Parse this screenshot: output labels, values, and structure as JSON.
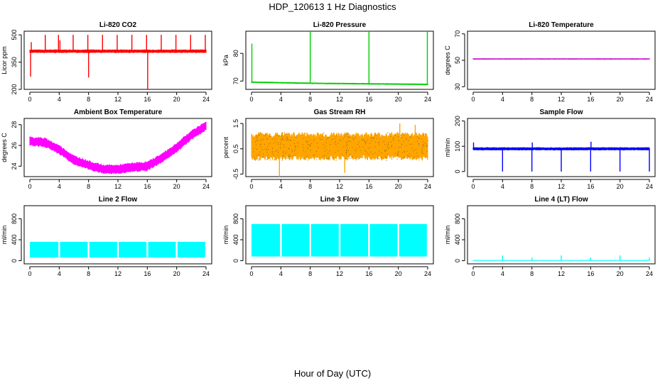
{
  "figure": {
    "title": "HDP_120613  1 Hz Diagnostics",
    "xlabel": "Hour of Day (UTC)"
  },
  "chart_data": [
    {
      "type": "line",
      "title": "Li-820 CO2",
      "ylabel": "Licor ppm",
      "color": "#ff0000",
      "xlim": [
        0,
        24
      ],
      "ylim": [
        200,
        520
      ],
      "xticks": [
        0,
        4,
        8,
        12,
        16,
        20,
        24
      ],
      "yticks": [
        200,
        350,
        500
      ],
      "grid": false,
      "baseline": [
        {
          "x": 0,
          "y": 410
        },
        {
          "x": 24,
          "y": 410
        }
      ],
      "band": 8,
      "spikes": [
        {
          "x": 0.1,
          "y": 270
        },
        {
          "x": 0.2,
          "y": 460
        },
        {
          "x": 2.1,
          "y": 500
        },
        {
          "x": 3.9,
          "y": 500
        },
        {
          "x": 4.1,
          "y": 470
        },
        {
          "x": 5.9,
          "y": 500
        },
        {
          "x": 7.9,
          "y": 500
        },
        {
          "x": 8.0,
          "y": 265
        },
        {
          "x": 9.9,
          "y": 500
        },
        {
          "x": 11.9,
          "y": 500
        },
        {
          "x": 13.9,
          "y": 500
        },
        {
          "x": 15.9,
          "y": 500
        },
        {
          "x": 16.05,
          "y": 200
        },
        {
          "x": 17.9,
          "y": 500
        },
        {
          "x": 19.9,
          "y": 500
        },
        {
          "x": 21.9,
          "y": 500
        },
        {
          "x": 23.9,
          "y": 500
        }
      ]
    },
    {
      "type": "line",
      "title": "Li-820 Pressure",
      "ylabel": "kPa",
      "color": "#00cc00",
      "xlim": [
        0,
        24
      ],
      "ylim": [
        67,
        88
      ],
      "xticks": [
        0,
        4,
        8,
        12,
        16,
        20,
        24
      ],
      "yticks": [
        70,
        80
      ],
      "grid": false,
      "baseline": [
        {
          "x": 0,
          "y": 69.6
        },
        {
          "x": 4,
          "y": 69.4
        },
        {
          "x": 8,
          "y": 69.2
        },
        {
          "x": 12,
          "y": 69.1
        },
        {
          "x": 16,
          "y": 69.0
        },
        {
          "x": 20,
          "y": 68.9
        },
        {
          "x": 24,
          "y": 68.8
        }
      ],
      "band": 0.15,
      "spikes": [
        {
          "x": 0.05,
          "y": 83.5
        },
        {
          "x": 8.0,
          "y": 88
        },
        {
          "x": 16.0,
          "y": 88
        },
        {
          "x": 23.95,
          "y": 88
        }
      ]
    },
    {
      "type": "line",
      "title": "Li-820 Temperature",
      "ylabel": "degrees C",
      "color": "#cc00cc",
      "xlim": [
        0,
        24
      ],
      "ylim": [
        28,
        72
      ],
      "xticks": [
        0,
        4,
        8,
        12,
        16,
        20,
        24
      ],
      "yticks": [
        30,
        50,
        70
      ],
      "grid": false,
      "baseline": [
        {
          "x": 0,
          "y": 51
        },
        {
          "x": 24,
          "y": 51
        }
      ],
      "band": 0.2,
      "spikes": []
    },
    {
      "type": "line",
      "title": "Ambient Box Temperature",
      "ylabel": "degrees C",
      "color": "#ff00ff",
      "xlim": [
        0,
        24
      ],
      "ylim": [
        23,
        28.6
      ],
      "xticks": [
        0,
        4,
        8,
        12,
        16,
        20,
        24
      ],
      "yticks": [
        24,
        26,
        28
      ],
      "grid": false,
      "baseline": [
        {
          "x": 0,
          "y": 26.4
        },
        {
          "x": 2,
          "y": 26.3
        },
        {
          "x": 4,
          "y": 25.6
        },
        {
          "x": 6,
          "y": 24.6
        },
        {
          "x": 8,
          "y": 24.1
        },
        {
          "x": 10,
          "y": 23.7
        },
        {
          "x": 12,
          "y": 23.7
        },
        {
          "x": 14,
          "y": 23.9
        },
        {
          "x": 16,
          "y": 24.0
        },
        {
          "x": 18,
          "y": 24.8
        },
        {
          "x": 20,
          "y": 25.8
        },
        {
          "x": 22,
          "y": 27.0
        },
        {
          "x": 24,
          "y": 27.9
        }
      ],
      "band": 0.45,
      "spikes": []
    },
    {
      "type": "line",
      "title": "Gas Stream RH",
      "ylabel": "percent",
      "color": "#ffa500",
      "color2": "#996600",
      "xlim": [
        0,
        24
      ],
      "ylim": [
        -0.6,
        1.7
      ],
      "xticks": [
        0,
        4,
        8,
        12,
        16,
        20,
        24
      ],
      "yticks": [
        -0.5,
        0.5,
        1.5
      ],
      "grid": false,
      "baseline": [
        {
          "x": 0,
          "y": 0.6
        },
        {
          "x": 24,
          "y": 0.6
        }
      ],
      "band": 0.55,
      "spikes": [
        {
          "x": 3.8,
          "y": -0.6
        },
        {
          "x": 12.7,
          "y": -0.45
        },
        {
          "x": 20.2,
          "y": 1.5
        },
        {
          "x": 22.3,
          "y": 1.45
        }
      ]
    },
    {
      "type": "line",
      "title": "Sample Flow",
      "ylabel": "ml/min",
      "color": "#0000ff",
      "xlim": [
        0,
        24
      ],
      "ylim": [
        -20,
        210
      ],
      "xticks": [
        0,
        4,
        8,
        12,
        16,
        20,
        24
      ],
      "yticks": [
        0,
        100,
        200
      ],
      "grid": false,
      "baseline": [
        {
          "x": 0,
          "y": 90
        },
        {
          "x": 24,
          "y": 90
        }
      ],
      "band": 5,
      "spikes": [
        {
          "x": 0.05,
          "y": 115
        },
        {
          "x": 4.0,
          "y": 0
        },
        {
          "x": 8.0,
          "y": 0
        },
        {
          "x": 8.05,
          "y": 115
        },
        {
          "x": 12.0,
          "y": 0
        },
        {
          "x": 16.0,
          "y": 0
        },
        {
          "x": 16.05,
          "y": 118
        },
        {
          "x": 20.0,
          "y": 0
        },
        {
          "x": 24.0,
          "y": 0
        }
      ]
    },
    {
      "type": "line",
      "title": "Line 2 Flow",
      "ylabel": "ml/min",
      "color": "#00ffff",
      "xlim": [
        0,
        24
      ],
      "ylim": [
        -60,
        1050
      ],
      "xticks": [
        0,
        4,
        8,
        12,
        16,
        20,
        24
      ],
      "yticks": [
        0,
        400,
        800
      ],
      "grid": false,
      "baseline": [
        {
          "x": 0,
          "y": 220
        },
        {
          "x": 24,
          "y": 220
        }
      ],
      "band_lo": 60,
      "band_hi": 360,
      "gaps": [
        4,
        8,
        12,
        16,
        20
      ],
      "spikes": []
    },
    {
      "type": "line",
      "title": "Line 3 Flow",
      "ylabel": "ml/min",
      "color": "#00ffff",
      "xlim": [
        0,
        24
      ],
      "ylim": [
        -60,
        1050
      ],
      "xticks": [
        0,
        4,
        8,
        12,
        16,
        20,
        24
      ],
      "yticks": [
        0,
        400,
        800
      ],
      "grid": false,
      "baseline": [
        {
          "x": 0,
          "y": 400
        },
        {
          "x": 24,
          "y": 400
        }
      ],
      "band_lo": 80,
      "band_hi": 700,
      "gaps": [
        4,
        8,
        12,
        16,
        20
      ],
      "spikes": []
    },
    {
      "type": "line",
      "title": "Line 4 (LT) Flow",
      "ylabel": "ml/min",
      "color": "#00ffff",
      "xlim": [
        0,
        24
      ],
      "ylim": [
        -60,
        1050
      ],
      "xticks": [
        0,
        4,
        8,
        12,
        16,
        20,
        24
      ],
      "yticks": [
        0,
        400,
        800
      ],
      "grid": false,
      "baseline": [
        {
          "x": 0,
          "y": 5
        },
        {
          "x": 24,
          "y": 5
        }
      ],
      "band": 2,
      "spikes": [
        {
          "x": 4.0,
          "y": 100
        },
        {
          "x": 8.0,
          "y": 60
        },
        {
          "x": 12.0,
          "y": 100
        },
        {
          "x": 16.0,
          "y": 60
        },
        {
          "x": 20.0,
          "y": 100
        },
        {
          "x": 24.0,
          "y": 60
        }
      ]
    }
  ]
}
